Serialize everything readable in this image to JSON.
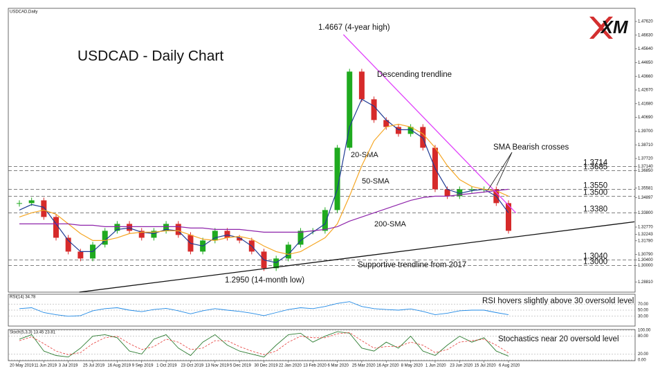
{
  "chart_data": {
    "type": "candlestick",
    "symbol": "USDCAD,Daily",
    "title": "USDCAD - Daily Chart",
    "logo": "XM",
    "categories": [
      "20 May 2019",
      null,
      "11 Jun 2019",
      null,
      "3 Jul 2019",
      null,
      "25 Jul 2019",
      null,
      "16 Aug 2019",
      null,
      "9 Sep 2019",
      null,
      "1 Oct 2019",
      null,
      "23 Oct 2019",
      null,
      "13 Nov 2019",
      null,
      "5 Dec 2019",
      null,
      "30 Dec 2019",
      null,
      "22 Jan 2020",
      null,
      "13 Feb 2020",
      null,
      "6 Mar 2020",
      null,
      "25 Mar 2020",
      null,
      "16 Apr 2020",
      null,
      "8 May 2020",
      null,
      "1 Jun 2020",
      null,
      "23 Jun 2020",
      null,
      "15 Jul 2020",
      null,
      "6 Aug 2020"
    ],
    "values": [
      1.345,
      1.347,
      1.335,
      1.32,
      1.31,
      1.305,
      1.315,
      1.325,
      1.33,
      1.325,
      1.32,
      1.325,
      1.33,
      1.322,
      1.31,
      1.318,
      1.325,
      1.32,
      1.318,
      1.31,
      1.298,
      1.305,
      1.315,
      1.325,
      1.325,
      1.34,
      1.385,
      1.44,
      1.42,
      1.405,
      1.4,
      1.395,
      1.4,
      1.385,
      1.355,
      1.35,
      1.355,
      1.355,
      1.355,
      1.345,
      1.325
    ],
    "up_color": "#1faa1f",
    "down_color": "#d62a2a",
    "ylim": [
      1.2807,
      1.4857
    ],
    "yticks": [
      {
        "value": 1.4762,
        "label": "1.47620"
      },
      {
        "value": 1.4663,
        "label": "1.46630"
      },
      {
        "value": 1.4564,
        "label": "1.45640"
      },
      {
        "value": 1.4465,
        "label": "1.44650"
      },
      {
        "value": 1.4366,
        "label": "1.43660"
      },
      {
        "value": 1.4267,
        "label": "1.42670"
      },
      {
        "value": 1.4168,
        "label": "1.41680"
      },
      {
        "value": 1.4069,
        "label": "1.40690"
      },
      {
        "value": 1.397,
        "label": "1.39700"
      },
      {
        "value": 1.3871,
        "label": "1.38710"
      },
      {
        "value": 1.3772,
        "label": "1.37720"
      },
      {
        "value": 1.3714,
        "label": "1.37140"
      },
      {
        "value": 1.3685,
        "label": "1.36850"
      },
      {
        "value": 1.35581,
        "label": "1.35581"
      },
      {
        "value": 1.34897,
        "label": "1.34897"
      },
      {
        "value": 1.338,
        "label": "1.33800"
      },
      {
        "value": 1.3277,
        "label": "1.32770"
      },
      {
        "value": 1.32243,
        "label": "1.32243"
      },
      {
        "value": 1.3178,
        "label": "1.31780"
      },
      {
        "value": 1.3079,
        "label": "1.30790"
      },
      {
        "value": 1.304,
        "label": "1.30400"
      },
      {
        "value": 1.3,
        "label": "1.30000"
      },
      {
        "value": 1.2881,
        "label": "1.28810"
      }
    ],
    "series": [
      {
        "name": "20-SMA",
        "color": "#1f3a93",
        "values": [
          1.34,
          1.344,
          1.342,
          1.33,
          1.318,
          1.31,
          1.31,
          1.318,
          1.326,
          1.327,
          1.324,
          1.323,
          1.326,
          1.325,
          1.316,
          1.314,
          1.32,
          1.322,
          1.32,
          1.314,
          1.304,
          1.302,
          1.308,
          1.318,
          1.324,
          1.33,
          1.355,
          1.4,
          1.42,
          1.415,
          1.405,
          1.398,
          1.398,
          1.392,
          1.37,
          1.355,
          1.352,
          1.354,
          1.355,
          1.35,
          1.338
        ]
      },
      {
        "name": "50-SMA",
        "color": "#f5a623",
        "values": [
          1.335,
          1.338,
          1.34,
          1.337,
          1.33,
          1.323,
          1.318,
          1.318,
          1.32,
          1.323,
          1.324,
          1.324,
          1.325,
          1.325,
          1.322,
          1.319,
          1.318,
          1.32,
          1.321,
          1.319,
          1.314,
          1.31,
          1.308,
          1.31,
          1.315,
          1.32,
          1.33,
          1.35,
          1.372,
          1.39,
          1.4,
          1.402,
          1.4,
          1.395,
          1.385,
          1.372,
          1.362,
          1.357,
          1.355,
          1.354,
          1.35
        ]
      },
      {
        "name": "200-SMA",
        "color": "#8e24aa",
        "values": [
          1.33,
          1.33,
          1.33,
          1.33,
          1.33,
          1.329,
          1.329,
          1.328,
          1.328,
          1.328,
          1.328,
          1.328,
          1.328,
          1.328,
          1.327,
          1.327,
          1.326,
          1.326,
          1.326,
          1.325,
          1.324,
          1.324,
          1.324,
          1.324,
          1.325,
          1.326,
          1.328,
          1.332,
          1.335,
          1.338,
          1.341,
          1.344,
          1.347,
          1.349,
          1.35,
          1.35,
          1.351,
          1.352,
          1.353,
          1.354,
          1.355
        ]
      }
    ],
    "levels": [
      {
        "value": 1.3714,
        "label": "1.3714",
        "color": "#e53935"
      },
      {
        "value": 1.3685,
        "label": "1.3685",
        "color": "#e53935"
      },
      {
        "value": 1.355,
        "label": "1.3550",
        "color": "#e53935"
      },
      {
        "value": 1.35,
        "label": "1.3500",
        "color": "#e53935"
      },
      {
        "value": 1.338,
        "label": "1.3380",
        "color": "#e53935"
      },
      {
        "value": 1.304,
        "label": "1.3040",
        "color": "#1e3cc8"
      },
      {
        "value": 1.3,
        "label": "1.3000",
        "color": "#1e3cc8"
      }
    ],
    "trendlines": [
      {
        "name": "Descending trendline",
        "color": "#e040fb",
        "x": [
          26.5,
          40.6
        ],
        "y": [
          1.4667,
          1.338
        ]
      },
      {
        "name": "Supportive trendline from 2017",
        "color": "#111111",
        "x": [
          4.9,
          50.3
        ],
        "y": [
          1.2807,
          1.3315
        ]
      }
    ],
    "annotations": [
      "1.4667 (4-year high)",
      "1.2950 (14-month low)",
      "SMA Bearish crosses"
    ],
    "rsi": {
      "label": "RSI(14) 34.78",
      "note": "RSI hovers slightly above 30 oversold level",
      "color": "#1e88e5",
      "ylim": [
        0,
        100
      ],
      "yticks": [
        {
          "value": 70,
          "label": "70.00"
        },
        {
          "value": 50,
          "label": "50.00"
        },
        {
          "value": 30,
          "label": "30.00"
        }
      ],
      "values": [
        55,
        58,
        42,
        35,
        30,
        32,
        48,
        55,
        58,
        50,
        45,
        52,
        56,
        48,
        38,
        48,
        55,
        50,
        46,
        40,
        32,
        42,
        52,
        58,
        55,
        62,
        72,
        78,
        62,
        55,
        52,
        50,
        54,
        46,
        35,
        40,
        48,
        50,
        50,
        42,
        35
      ]
    },
    "stoch": {
      "label": "Stoch(5,3,3) 13.45 23.81",
      "note": "Stochastics near 20 oversold level",
      "ylim": [
        0,
        100
      ],
      "yticks": [
        {
          "value": 100,
          "label": "100.00"
        },
        {
          "value": 80,
          "label": "80.00"
        },
        {
          "value": 20,
          "label": "20.00"
        },
        {
          "value": 0,
          "label": "0.00"
        }
      ],
      "series": [
        {
          "color": "#2e7d32",
          "values": [
            70,
            85,
            30,
            15,
            10,
            40,
            80,
            85,
            75,
            30,
            20,
            70,
            85,
            40,
            15,
            60,
            85,
            50,
            30,
            20,
            10,
            50,
            85,
            90,
            60,
            80,
            95,
            90,
            40,
            30,
            60,
            40,
            80,
            30,
            15,
            50,
            80,
            60,
            75,
            30,
            13
          ]
        },
        {
          "color": "#e53935",
          "values": [
            65,
            78,
            55,
            30,
            18,
            25,
            55,
            75,
            80,
            55,
            35,
            45,
            70,
            60,
            35,
            40,
            65,
            65,
            45,
            30,
            18,
            30,
            60,
            80,
            75,
            75,
            88,
            92,
            65,
            40,
            45,
            45,
            60,
            50,
            25,
            35,
            60,
            65,
            70,
            50,
            24
          ]
        }
      ]
    }
  }
}
